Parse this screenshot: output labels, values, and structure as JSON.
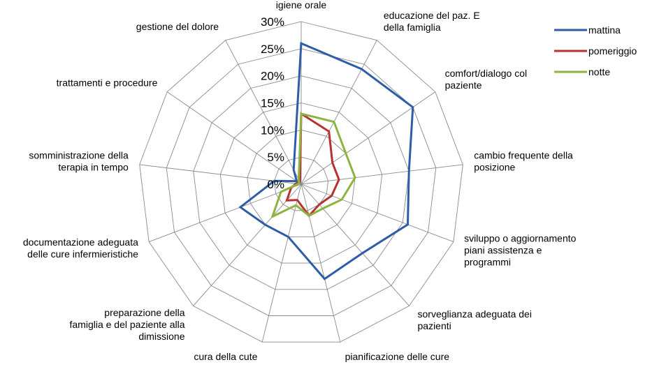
{
  "chart_data": {
    "type": "radar",
    "categories": [
      [
        "igiene orale"
      ],
      [
        "educazione del paz. E",
        "della famiglia"
      ],
      [
        "comfort/dialogo col",
        "paziente"
      ],
      [
        "cambio frequente della",
        "posizione"
      ],
      [
        "sviluppo o aggiornamento",
        "piani assistenza e",
        "programmi"
      ],
      [
        "sorveglianza adeguata dei",
        "pazienti"
      ],
      [
        "pianificazione delle cure"
      ],
      [
        "cura della cute"
      ],
      [
        "preparazione della",
        "famiglia e del paziente alla",
        "dimissione"
      ],
      [
        "documentazione adeguata",
        "delle cure infermieristiche"
      ],
      [
        "somministrazione della",
        "terapia in tempo"
      ],
      [
        "trattamenti e procedure"
      ],
      [
        "gestione del dolore"
      ]
    ],
    "ticks": [
      0,
      5,
      10,
      15,
      20,
      25,
      30
    ],
    "tick_labels": [
      "0%",
      "5%",
      "10%",
      "15%",
      "20%",
      "25%",
      "30%"
    ],
    "rmax": 30,
    "series": [
      {
        "name": "mattina",
        "color": "#2E5DA8",
        "values": [
          26,
          24,
          25,
          20,
          21,
          17,
          18,
          10,
          10,
          12,
          5,
          1,
          3
        ]
      },
      {
        "name": "pomeriggio",
        "color": "#B83232",
        "values": [
          13,
          11,
          7,
          7,
          6,
          5,
          6,
          3,
          4,
          2,
          1,
          0.5,
          0.5
        ]
      },
      {
        "name": "notte",
        "color": "#8DB43E",
        "values": [
          13,
          13,
          10,
          10,
          8,
          6,
          6,
          4,
          8,
          4,
          0.5,
          0.5,
          1
        ]
      }
    ],
    "legend_position": "top-right",
    "grid": true
  }
}
